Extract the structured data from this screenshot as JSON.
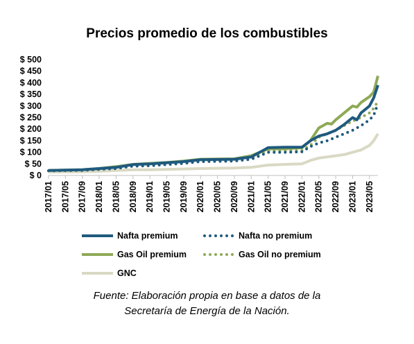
{
  "chart_data": {
    "type": "line",
    "title": "Precios promedio de los combustibles",
    "xlabel": "",
    "ylabel": "",
    "ylim": [
      0,
      500
    ],
    "yticks": [
      "$ 0",
      "$ 50",
      "$ 100",
      "$ 150",
      "$ 200",
      "$ 250",
      "$ 300",
      "$ 350",
      "$ 400",
      "$ 450",
      "$ 500"
    ],
    "ytick_values": [
      0,
      50,
      100,
      150,
      200,
      250,
      300,
      350,
      400,
      450,
      500
    ],
    "x_tick_labels": [
      "2017/01",
      "2017/05",
      "2017/09",
      "2018/01",
      "2018/05",
      "2018/09",
      "2019/01",
      "2019/05",
      "2019/09",
      "2020/01",
      "2020/05",
      "2020/09",
      "2021/01",
      "2021/05",
      "2021/09",
      "2022/01",
      "2022/05",
      "2022/09",
      "2023/01",
      "2023/05"
    ],
    "x_range": [
      "2017/01",
      "2023/07"
    ],
    "grid": false,
    "legend_position": "bottom",
    "series": [
      {
        "name": "Nafta premium",
        "color": "#1f5a7e",
        "style": "solid",
        "points": [
          [
            "2017/01",
            22
          ],
          [
            "2017/09",
            25
          ],
          [
            "2018/01",
            30
          ],
          [
            "2018/05",
            35
          ],
          [
            "2018/09",
            47
          ],
          [
            "2019/01",
            50
          ],
          [
            "2019/05",
            55
          ],
          [
            "2019/09",
            60
          ],
          [
            "2020/01",
            68
          ],
          [
            "2020/09",
            70
          ],
          [
            "2021/01",
            80
          ],
          [
            "2021/05",
            120
          ],
          [
            "2021/09",
            122
          ],
          [
            "2022/01",
            122
          ],
          [
            "2022/03",
            150
          ],
          [
            "2022/05",
            170
          ],
          [
            "2022/07",
            180
          ],
          [
            "2022/09",
            195
          ],
          [
            "2022/11",
            220
          ],
          [
            "2023/01",
            250
          ],
          [
            "2023/02",
            240
          ],
          [
            "2023/03",
            270
          ],
          [
            "2023/05",
            300
          ],
          [
            "2023/06",
            335
          ],
          [
            "2023/07",
            390
          ]
        ]
      },
      {
        "name": "Nafta no premium",
        "color": "#1f5a7e",
        "style": "dotted",
        "points": [
          [
            "2017/01",
            20
          ],
          [
            "2017/09",
            22
          ],
          [
            "2018/01",
            26
          ],
          [
            "2018/05",
            30
          ],
          [
            "2018/09",
            40
          ],
          [
            "2019/01",
            42
          ],
          [
            "2019/05",
            47
          ],
          [
            "2019/09",
            52
          ],
          [
            "2020/01",
            60
          ],
          [
            "2020/09",
            62
          ],
          [
            "2021/01",
            70
          ],
          [
            "2021/05",
            100
          ],
          [
            "2021/09",
            100
          ],
          [
            "2022/01",
            102
          ],
          [
            "2022/03",
            125
          ],
          [
            "2022/05",
            140
          ],
          [
            "2022/07",
            150
          ],
          [
            "2022/09",
            165
          ],
          [
            "2022/11",
            180
          ],
          [
            "2023/01",
            195
          ],
          [
            "2023/03",
            215
          ],
          [
            "2023/05",
            240
          ],
          [
            "2023/06",
            260
          ],
          [
            "2023/07",
            310
          ]
        ]
      },
      {
        "name": "Gas Oil premium",
        "color": "#8ea956",
        "style": "solid",
        "points": [
          [
            "2017/01",
            22
          ],
          [
            "2017/09",
            25
          ],
          [
            "2018/01",
            30
          ],
          [
            "2018/05",
            38
          ],
          [
            "2018/09",
            48
          ],
          [
            "2019/01",
            52
          ],
          [
            "2019/05",
            56
          ],
          [
            "2019/09",
            62
          ],
          [
            "2020/01",
            70
          ],
          [
            "2020/09",
            72
          ],
          [
            "2021/01",
            85
          ],
          [
            "2021/05",
            115
          ],
          [
            "2021/09",
            115
          ],
          [
            "2022/01",
            120
          ],
          [
            "2022/03",
            150
          ],
          [
            "2022/05",
            205
          ],
          [
            "2022/07",
            225
          ],
          [
            "2022/08",
            222
          ],
          [
            "2022/09",
            240
          ],
          [
            "2022/11",
            270
          ],
          [
            "2023/01",
            300
          ],
          [
            "2023/02",
            295
          ],
          [
            "2023/03",
            315
          ],
          [
            "2023/05",
            340
          ],
          [
            "2023/06",
            360
          ],
          [
            "2023/07",
            430
          ]
        ]
      },
      {
        "name": "Gas Oil no premium",
        "color": "#8ea956",
        "style": "dotted",
        "points": [
          [
            "2017/01",
            20
          ],
          [
            "2017/09",
            22
          ],
          [
            "2018/01",
            27
          ],
          [
            "2018/05",
            33
          ],
          [
            "2018/09",
            42
          ],
          [
            "2019/01",
            45
          ],
          [
            "2019/05",
            50
          ],
          [
            "2019/09",
            55
          ],
          [
            "2020/01",
            62
          ],
          [
            "2020/09",
            65
          ],
          [
            "2021/01",
            78
          ],
          [
            "2021/05",
            105
          ],
          [
            "2021/09",
            105
          ],
          [
            "2022/01",
            108
          ],
          [
            "2022/03",
            130
          ],
          [
            "2022/05",
            165
          ],
          [
            "2022/07",
            180
          ],
          [
            "2022/09",
            195
          ],
          [
            "2022/11",
            215
          ],
          [
            "2023/01",
            235
          ],
          [
            "2023/03",
            250
          ],
          [
            "2023/05",
            270
          ],
          [
            "2023/06",
            290
          ],
          [
            "2023/07",
            320
          ]
        ]
      },
      {
        "name": "GNC",
        "color": "#d9d9c4",
        "style": "solid",
        "points": [
          [
            "2017/01",
            15
          ],
          [
            "2017/09",
            16
          ],
          [
            "2018/01",
            18
          ],
          [
            "2018/05",
            22
          ],
          [
            "2018/09",
            25
          ],
          [
            "2019/01",
            25
          ],
          [
            "2019/09",
            28
          ],
          [
            "2020/01",
            30
          ],
          [
            "2020/09",
            32
          ],
          [
            "2021/01",
            35
          ],
          [
            "2021/05",
            45
          ],
          [
            "2021/09",
            48
          ],
          [
            "2022/01",
            50
          ],
          [
            "2022/03",
            65
          ],
          [
            "2022/05",
            75
          ],
          [
            "2022/09",
            85
          ],
          [
            "2022/11",
            90
          ],
          [
            "2023/01",
            100
          ],
          [
            "2023/03",
            110
          ],
          [
            "2023/05",
            130
          ],
          [
            "2023/06",
            150
          ],
          [
            "2023/07",
            180
          ]
        ]
      }
    ]
  },
  "source_lines": [
    "Fuente: Elaboración propia en base a datos de la",
    "Secretaría de Energía de la Nación."
  ]
}
